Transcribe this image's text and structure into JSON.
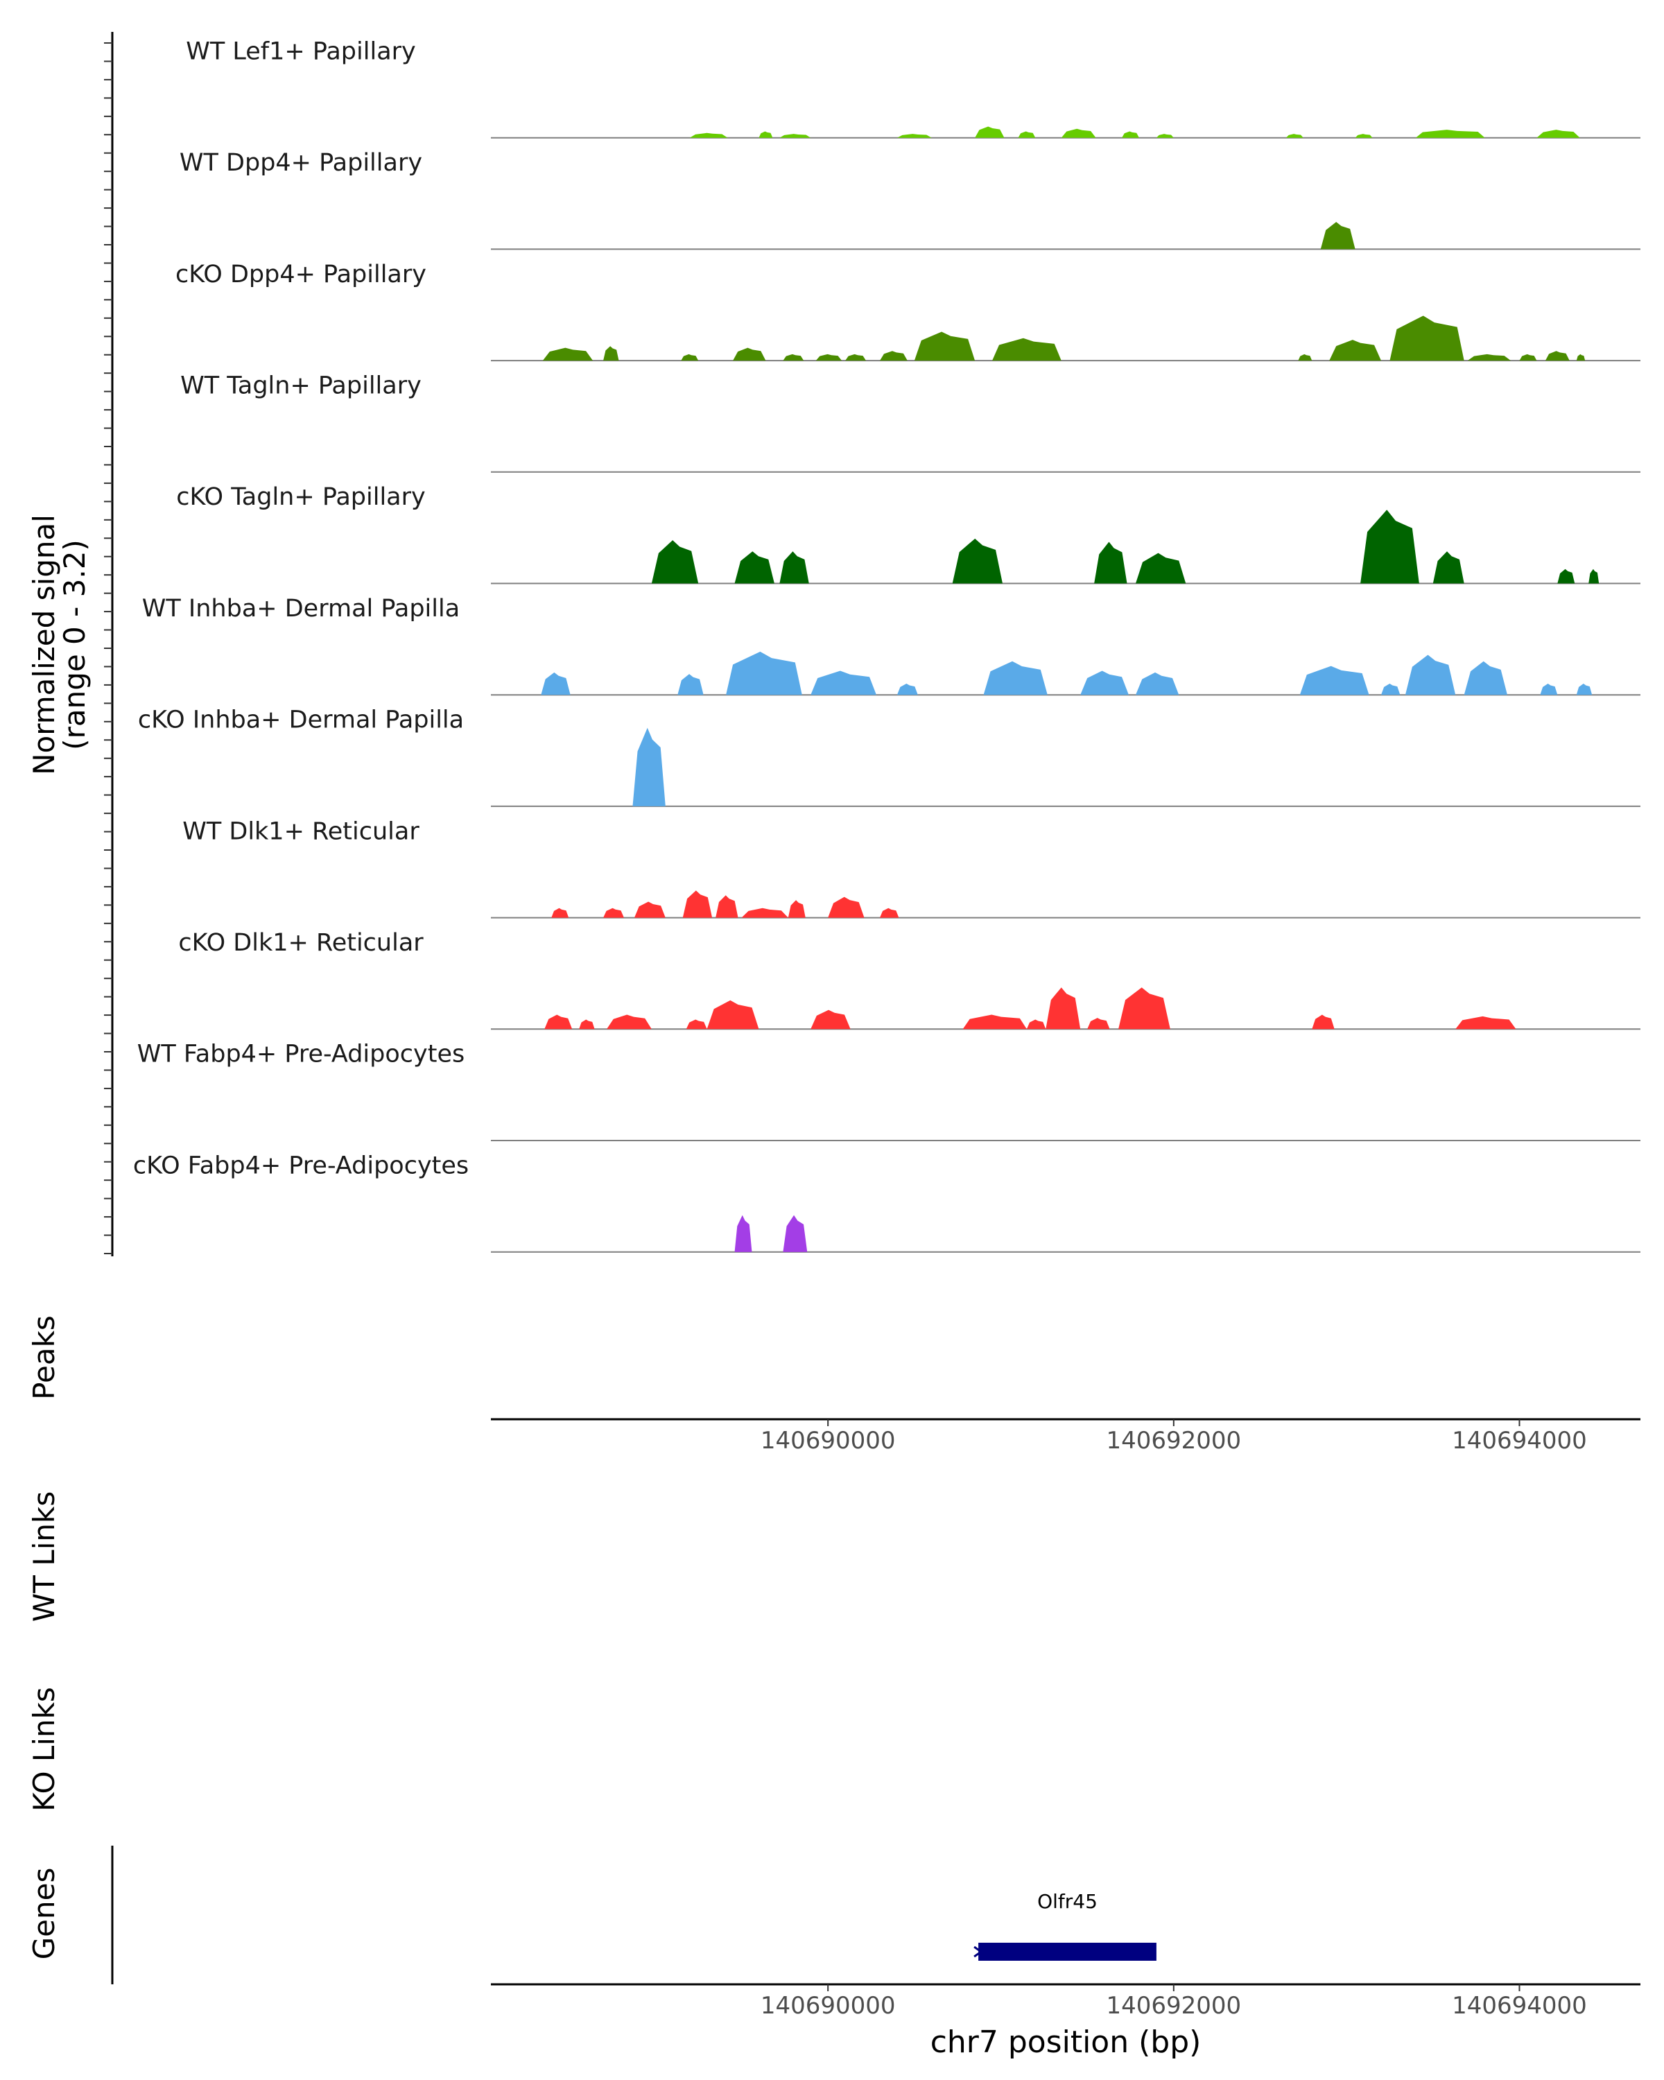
{
  "chart_data": {
    "type": "area",
    "title": "",
    "xlabel": "chr7 position (bp)",
    "ylabel_line1": "Normalized signal",
    "ylabel_line2": "(range 0 - 3.2)",
    "chromosome": "chr7",
    "xlim": [
      140688050,
      140694700
    ],
    "ylim": [
      0,
      3.2
    ],
    "x_ticks": [
      140690000,
      140692000,
      140694000
    ],
    "x_tick_labels": [
      "140690000",
      "140692000",
      "140694000"
    ],
    "series": [
      {
        "name": "WT Lef1+ Papillary",
        "color": "#66cc00",
        "peaks": [
          [
            140689200,
            140689420,
            0.15
          ],
          [
            140689600,
            140689680,
            0.2
          ],
          [
            140689720,
            140689900,
            0.12
          ],
          [
            140690400,
            140690600,
            0.12
          ],
          [
            140690850,
            140691020,
            0.35
          ],
          [
            140691100,
            140691200,
            0.2
          ],
          [
            140691350,
            140691550,
            0.28
          ],
          [
            140691700,
            140691800,
            0.2
          ],
          [
            140691900,
            140692000,
            0.12
          ],
          [
            140692650,
            140692750,
            0.12
          ],
          [
            140693050,
            140693150,
            0.12
          ],
          [
            140693400,
            140693800,
            0.25
          ],
          [
            140694100,
            140694350,
            0.25
          ]
        ]
      },
      {
        "name": "WT Dpp4+ Papillary",
        "color": "#4a8c00",
        "peaks": [
          [
            140692850,
            140693050,
            0.85
          ]
        ]
      },
      {
        "name": "cKO Dpp4+ Papillary",
        "color": "#4a8c00",
        "peaks": [
          [
            140688350,
            140688640,
            0.4
          ],
          [
            140688700,
            140688790,
            0.45
          ],
          [
            140689150,
            140689250,
            0.2
          ],
          [
            140689450,
            140689640,
            0.4
          ],
          [
            140689740,
            140689860,
            0.2
          ],
          [
            140689930,
            140690080,
            0.2
          ],
          [
            140690100,
            140690220,
            0.2
          ],
          [
            140690300,
            140690460,
            0.3
          ],
          [
            140690500,
            140690850,
            0.9
          ],
          [
            140690950,
            140691350,
            0.7
          ],
          [
            140692720,
            140692800,
            0.2
          ],
          [
            140692900,
            140693200,
            0.65
          ],
          [
            140693250,
            140693680,
            1.4
          ],
          [
            140693700,
            140693950,
            0.2
          ],
          [
            140694000,
            140694100,
            0.2
          ],
          [
            140694150,
            140694290,
            0.3
          ],
          [
            140694330,
            140694380,
            0.2
          ]
        ]
      },
      {
        "name": "WT Tagln+ Papillary",
        "color": "#006400",
        "peaks": []
      },
      {
        "name": "cKO Tagln+ Papillary",
        "color": "#006400",
        "peaks": [
          [
            140688980,
            140689250,
            1.35
          ],
          [
            140689460,
            140689690,
            1.0
          ],
          [
            140689720,
            140689890,
            1.0
          ],
          [
            140690720,
            140691010,
            1.4
          ],
          [
            140691540,
            140691730,
            1.3
          ],
          [
            140691780,
            140692070,
            0.95
          ],
          [
            140693080,
            140693420,
            2.3
          ],
          [
            140693500,
            140693680,
            1.0
          ],
          [
            140694220,
            140694320,
            0.45
          ],
          [
            140694400,
            140694460,
            0.45
          ]
        ]
      },
      {
        "name": "WT Inhba+ Dermal Papilla",
        "color": "#5aaae8",
        "peaks": [
          [
            140688340,
            140688510,
            0.7
          ],
          [
            140689130,
            140689280,
            0.65
          ],
          [
            140689410,
            140689850,
            1.35
          ],
          [
            140689900,
            140690280,
            0.75
          ],
          [
            140690400,
            140690520,
            0.35
          ],
          [
            140690900,
            140691270,
            1.05
          ],
          [
            140691460,
            140691740,
            0.75
          ],
          [
            140691780,
            140692030,
            0.7
          ],
          [
            140692730,
            140693130,
            0.9
          ],
          [
            140693200,
            140693310,
            0.35
          ],
          [
            140693340,
            140693630,
            1.25
          ],
          [
            140693680,
            140693930,
            1.05
          ],
          [
            140694120,
            140694220,
            0.35
          ],
          [
            140694330,
            140694420,
            0.35
          ]
        ]
      },
      {
        "name": "cKO Inhba+ Dermal Papilla",
        "color": "#5aaae8",
        "peaks": [
          [
            140688870,
            140689060,
            2.45
          ]
        ]
      },
      {
        "name": "WT Dlk1+ Reticular",
        "color": "#ff3333",
        "peaks": [
          [
            140688400,
            140688500,
            0.3
          ],
          [
            140688700,
            140688820,
            0.3
          ],
          [
            140688880,
            140689060,
            0.5
          ],
          [
            140689160,
            140689330,
            0.85
          ],
          [
            140689350,
            140689480,
            0.7
          ],
          [
            140689500,
            140689770,
            0.3
          ],
          [
            140689770,
            140689870,
            0.55
          ],
          [
            140690000,
            140690210,
            0.65
          ],
          [
            140690300,
            140690410,
            0.3
          ]
        ]
      },
      {
        "name": "cKO Dlk1+ Reticular",
        "color": "#ff3333",
        "peaks": [
          [
            140688360,
            140688520,
            0.45
          ],
          [
            140688560,
            140688650,
            0.3
          ],
          [
            140688720,
            140688980,
            0.45
          ],
          [
            140689180,
            140689300,
            0.3
          ],
          [
            140689300,
            140689600,
            0.9
          ],
          [
            140689900,
            140690130,
            0.6
          ],
          [
            140690780,
            140691150,
            0.45
          ],
          [
            140691150,
            140691260,
            0.3
          ],
          [
            140691260,
            140691460,
            1.3
          ],
          [
            140691500,
            140691630,
            0.35
          ],
          [
            140691680,
            140691980,
            1.3
          ],
          [
            140692800,
            140692930,
            0.45
          ],
          [
            140693630,
            140693980,
            0.4
          ]
        ]
      },
      {
        "name": "WT Fabp4+ Pre-Adipocytes",
        "color": "#a33ee6",
        "peaks": []
      },
      {
        "name": "cKO Fabp4+ Pre-Adipocytes",
        "color": "#a33ee6",
        "peaks": [
          [
            140689460,
            140689560,
            1.15
          ],
          [
            140689740,
            140689880,
            1.15
          ]
        ]
      }
    ],
    "peaks_track_label": "Peaks",
    "links_tracks": [
      "WT Links",
      "KO Links"
    ],
    "genes_track_label": "Genes",
    "genes": [
      {
        "name": "Olfr45",
        "start": 140690870,
        "end": 140691900,
        "strand": "-",
        "color": "#000080"
      }
    ]
  }
}
